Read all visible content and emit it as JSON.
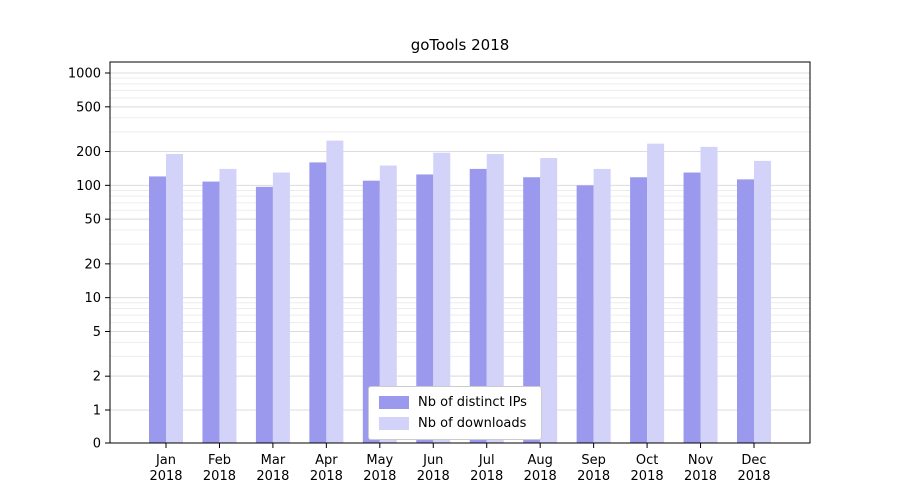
{
  "chart_data": {
    "type": "bar",
    "title": "goTools 2018",
    "categories": [
      "Jan 2018",
      "Feb 2018",
      "Mar 2018",
      "Apr 2018",
      "May 2018",
      "Jun 2018",
      "Jul 2018",
      "Aug 2018",
      "Sep 2018",
      "Oct 2018",
      "Nov 2018",
      "Dec 2018"
    ],
    "series": [
      {
        "name": "Nb of distinct IPs",
        "color": "#9a99ee",
        "values": [
          120,
          108,
          97,
          160,
          110,
          125,
          140,
          118,
          100,
          118,
          130,
          113
        ]
      },
      {
        "name": "Nb of downloads",
        "color": "#d3d2f8",
        "values": [
          190,
          140,
          130,
          250,
          150,
          195,
          190,
          175,
          140,
          235,
          220,
          165
        ]
      }
    ],
    "yscale": "symlog",
    "yticks": [
      0,
      1,
      2,
      5,
      10,
      20,
      50,
      100,
      200,
      500,
      1000
    ],
    "ylim": [
      0,
      1250
    ],
    "xlabel": "",
    "ylabel": "",
    "grid": "horizontal",
    "legend_position": "lower-center-inside",
    "axis_color": "#000000",
    "major_grid_color": "#dcdcdc",
    "minor_grid_color": "#ededed",
    "background_color": "#ffffff"
  }
}
